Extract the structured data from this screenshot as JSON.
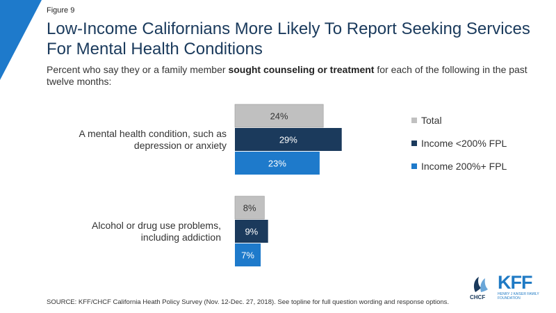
{
  "figure_label": "Figure 9",
  "title": "Low-Income Californians More Likely To Report Seeking Services For Mental Health Conditions",
  "subtitle_pre": "Percent who say they or a family member ",
  "subtitle_bold": "sought counseling or treatment",
  "subtitle_post": " for each of the following in the past twelve months:",
  "source": "SOURCE: KFF/CHCF California Heath Policy Survey (Nov. 12-Dec. 27, 2018). See topline for full question wording and response options.",
  "logos": {
    "chcf": "CHCF",
    "kff": "KFF",
    "kff_sub": "HENRY J KAISER FAMILY FOUNDATION"
  },
  "colors": {
    "total": "#c0c0c0",
    "low_income": "#1b3a5c",
    "high_income": "#1e7acb",
    "corner": "#1e7acb"
  },
  "chart_data": {
    "type": "bar",
    "orientation": "horizontal",
    "categories": [
      [
        "A mental health condition, such as",
        "depression or anxiety"
      ],
      [
        "Alcohol or drug use problems,",
        "including addiction"
      ]
    ],
    "series": [
      {
        "name": "Total",
        "values": [
          24,
          8
        ],
        "labels": [
          "24%",
          "8%"
        ]
      },
      {
        "name": "Income <200% FPL",
        "values": [
          29,
          9
        ],
        "labels": [
          "29%",
          "9%"
        ]
      },
      {
        "name": "Income 200%+ FPL",
        "values": [
          23,
          7
        ],
        "labels": [
          "23%",
          "7%"
        ]
      }
    ],
    "unit": "%",
    "legend_position": "right",
    "grid": false
  }
}
